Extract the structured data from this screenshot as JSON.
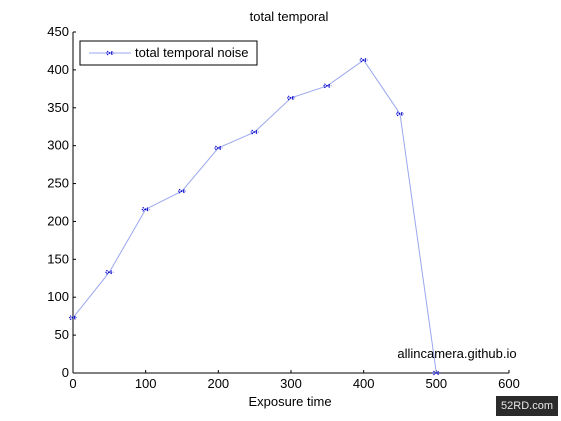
{
  "chart_data": {
    "type": "line",
    "title": "total temporal",
    "xlabel": "Exposure time",
    "ylabel": "",
    "xlim": [
      0,
      600
    ],
    "ylim": [
      0,
      450
    ],
    "x_ticks": [
      "0",
      "100",
      "200",
      "300",
      "400",
      "500",
      "600"
    ],
    "y_ticks": [
      "0",
      "50",
      "100",
      "150",
      "200",
      "250",
      "300",
      "350",
      "400",
      "450"
    ],
    "legend_position": "top-left",
    "grid": false,
    "series": [
      {
        "name": "total temporal noise",
        "color": "#0000cc",
        "line_color": "#9aa7ee",
        "x": [
          0,
          50,
          100,
          150,
          200,
          250,
          300,
          350,
          400,
          450,
          500
        ],
        "y": [
          73,
          133,
          216,
          240,
          297,
          318,
          363,
          379,
          413,
          342,
          0
        ]
      }
    ],
    "annotations": [
      {
        "text": "allincamera.github.io",
        "x": 500,
        "y": 25
      }
    ]
  },
  "watermark": "52RD.com"
}
